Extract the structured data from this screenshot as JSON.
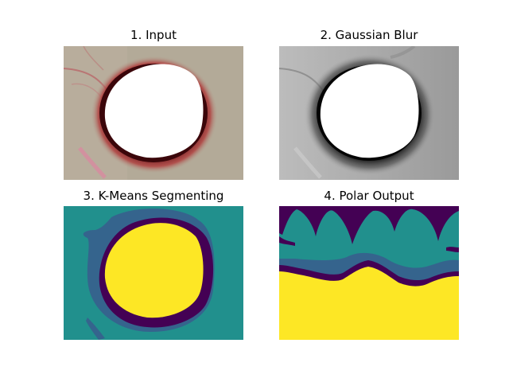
{
  "figure": {
    "panels": [
      {
        "title": "1. Input",
        "content": "image",
        "colors": {
          "background": "#b3aa98",
          "ring": "#5a0a10",
          "ring_outer": "#b03a3a",
          "hole": "#ffffff",
          "vein": "#b9686a",
          "streak": "#d88aa0"
        }
      },
      {
        "title": "2. Gaussian Blur",
        "content": "image",
        "colors": {
          "background": "#a2a2a2",
          "ring": "#0c0c0c",
          "hole": "#ffffff",
          "vein": "#777777"
        }
      },
      {
        "title": "3. K-Means Segmenting",
        "content": "image",
        "colors": {
          "background": "#21908d",
          "band": "#35648d",
          "ring": "#440154",
          "core": "#fde725"
        }
      },
      {
        "title": "4. Polar Output",
        "content": "image",
        "colors": {
          "top": "#440154",
          "teal": "#21908d",
          "band": "#35648d",
          "bottom": "#fde725"
        }
      }
    ]
  }
}
